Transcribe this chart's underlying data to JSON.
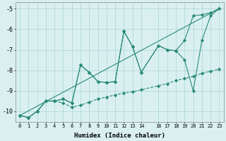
{
  "xlabel": "Humidex (Indice chaleur)",
  "bg_color": "#daf0f0",
  "line_color": "#2a8a7a",
  "xlim": [
    -0.5,
    23.5
  ],
  "ylim": [
    -10.5,
    -4.7
  ],
  "yticks": [
    -10,
    -9,
    -8,
    -7,
    -6,
    -5
  ],
  "xtick_labels": [
    "0",
    "1",
    "2",
    "3",
    "4",
    "5",
    "6",
    "7",
    "8",
    "9",
    "10",
    "11",
    "12",
    "13",
    "14",
    "16",
    "17",
    "18",
    "19",
    "20",
    "21",
    "22",
    "23"
  ],
  "xtick_pos": [
    0,
    1,
    2,
    3,
    4,
    5,
    6,
    7,
    8,
    9,
    10,
    11,
    12,
    13,
    14,
    16,
    17,
    18,
    19,
    20,
    21,
    22,
    23
  ],
  "series": [
    {
      "x": [
        0,
        1,
        2,
        3,
        4,
        5,
        6,
        7,
        8,
        9,
        10,
        11,
        12,
        13,
        14,
        16,
        17,
        18,
        19,
        20,
        21,
        22,
        23
      ],
      "y": [
        -10.2,
        -10.3,
        -10.0,
        -9.5,
        -9.5,
        -9.4,
        -9.6,
        -7.75,
        -8.1,
        -8.55,
        -8.6,
        -8.55,
        -6.1,
        -6.85,
        -8.1,
        -6.8,
        -7.0,
        -7.05,
        -7.5,
        -9.0,
        -6.55,
        -5.35,
        -5.0
      ],
      "marker": true,
      "linestyle": "solid"
    },
    {
      "x": [
        0,
        1,
        2,
        3,
        4,
        5,
        6,
        7,
        8,
        9,
        10,
        11,
        12,
        13,
        14,
        16,
        17,
        18,
        19,
        20,
        21,
        22,
        23
      ],
      "y": [
        -10.2,
        -10.3,
        -10.0,
        -9.5,
        -9.5,
        -9.4,
        -9.6,
        -7.75,
        -8.1,
        -8.55,
        -8.6,
        -8.55,
        -6.1,
        -6.85,
        -8.1,
        -6.8,
        -7.0,
        -7.05,
        -6.55,
        -5.35,
        -5.3,
        -5.2,
        -5.0
      ],
      "marker": true,
      "linestyle": "solid"
    },
    {
      "x": [
        0,
        23
      ],
      "y": [
        -10.2,
        -5.0
      ],
      "marker": false,
      "linestyle": "solid"
    },
    {
      "x": [
        0,
        1,
        2,
        3,
        4,
        5,
        6,
        7,
        8,
        9,
        10,
        11,
        12,
        13,
        14,
        16,
        17,
        18,
        19,
        20,
        21,
        22,
        23
      ],
      "y": [
        -10.2,
        -10.3,
        -10.0,
        -9.5,
        -9.5,
        -9.6,
        -9.8,
        -9.7,
        -9.55,
        -9.4,
        -9.3,
        -9.2,
        -9.1,
        -9.05,
        -8.95,
        -8.75,
        -8.65,
        -8.5,
        -8.4,
        -8.3,
        -8.15,
        -8.05,
        -7.95
      ],
      "marker": true,
      "linestyle": "dashed"
    }
  ]
}
